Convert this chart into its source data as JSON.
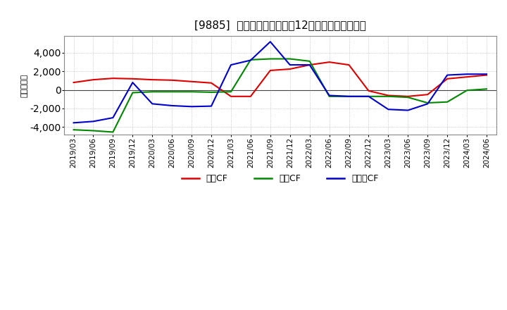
{
  "title": "[9885]  キャッシュフローの12か月移動合計の推移",
  "ylabel": "（百万円）",
  "background_color": "#ffffff",
  "x_labels": [
    "2019/03",
    "2019/06",
    "2019/09",
    "2019/12",
    "2020/03",
    "2020/06",
    "2020/09",
    "2020/12",
    "2021/03",
    "2021/06",
    "2021/09",
    "2021/12",
    "2022/03",
    "2022/06",
    "2022/09",
    "2022/12",
    "2023/03",
    "2023/06",
    "2023/09",
    "2023/12",
    "2024/03",
    "2024/06"
  ],
  "营业CF_values": [
    800,
    1100,
    1250,
    1200,
    1100,
    1050,
    900,
    750,
    -700,
    -700,
    2100,
    2250,
    2700,
    3000,
    2700,
    -100,
    -600,
    -700,
    -500,
    1200,
    1400,
    1600
  ],
  "投資CF_values": [
    -4300,
    -4400,
    -4550,
    -300,
    -200,
    -200,
    -200,
    -250,
    -200,
    3250,
    3350,
    3350,
    3100,
    -700,
    -700,
    -700,
    -700,
    -800,
    -1400,
    -1300,
    -50,
    100
  ],
  "フリーCF_values": [
    -3550,
    -3400,
    -3000,
    800,
    -1500,
    -1700,
    -1800,
    -1750,
    2700,
    3200,
    5200,
    2700,
    2700,
    -600,
    -700,
    -700,
    -2100,
    -2200,
    -1500,
    1600,
    1700,
    1700
  ],
  "series_colors": {
    "営業CF": "#dd0000",
    "投資CF": "#008800",
    "フリーCF": "#0000cc"
  },
  "ylim": [
    -4800,
    5800
  ],
  "yticks": [
    -4000,
    -2000,
    0,
    2000,
    4000
  ]
}
